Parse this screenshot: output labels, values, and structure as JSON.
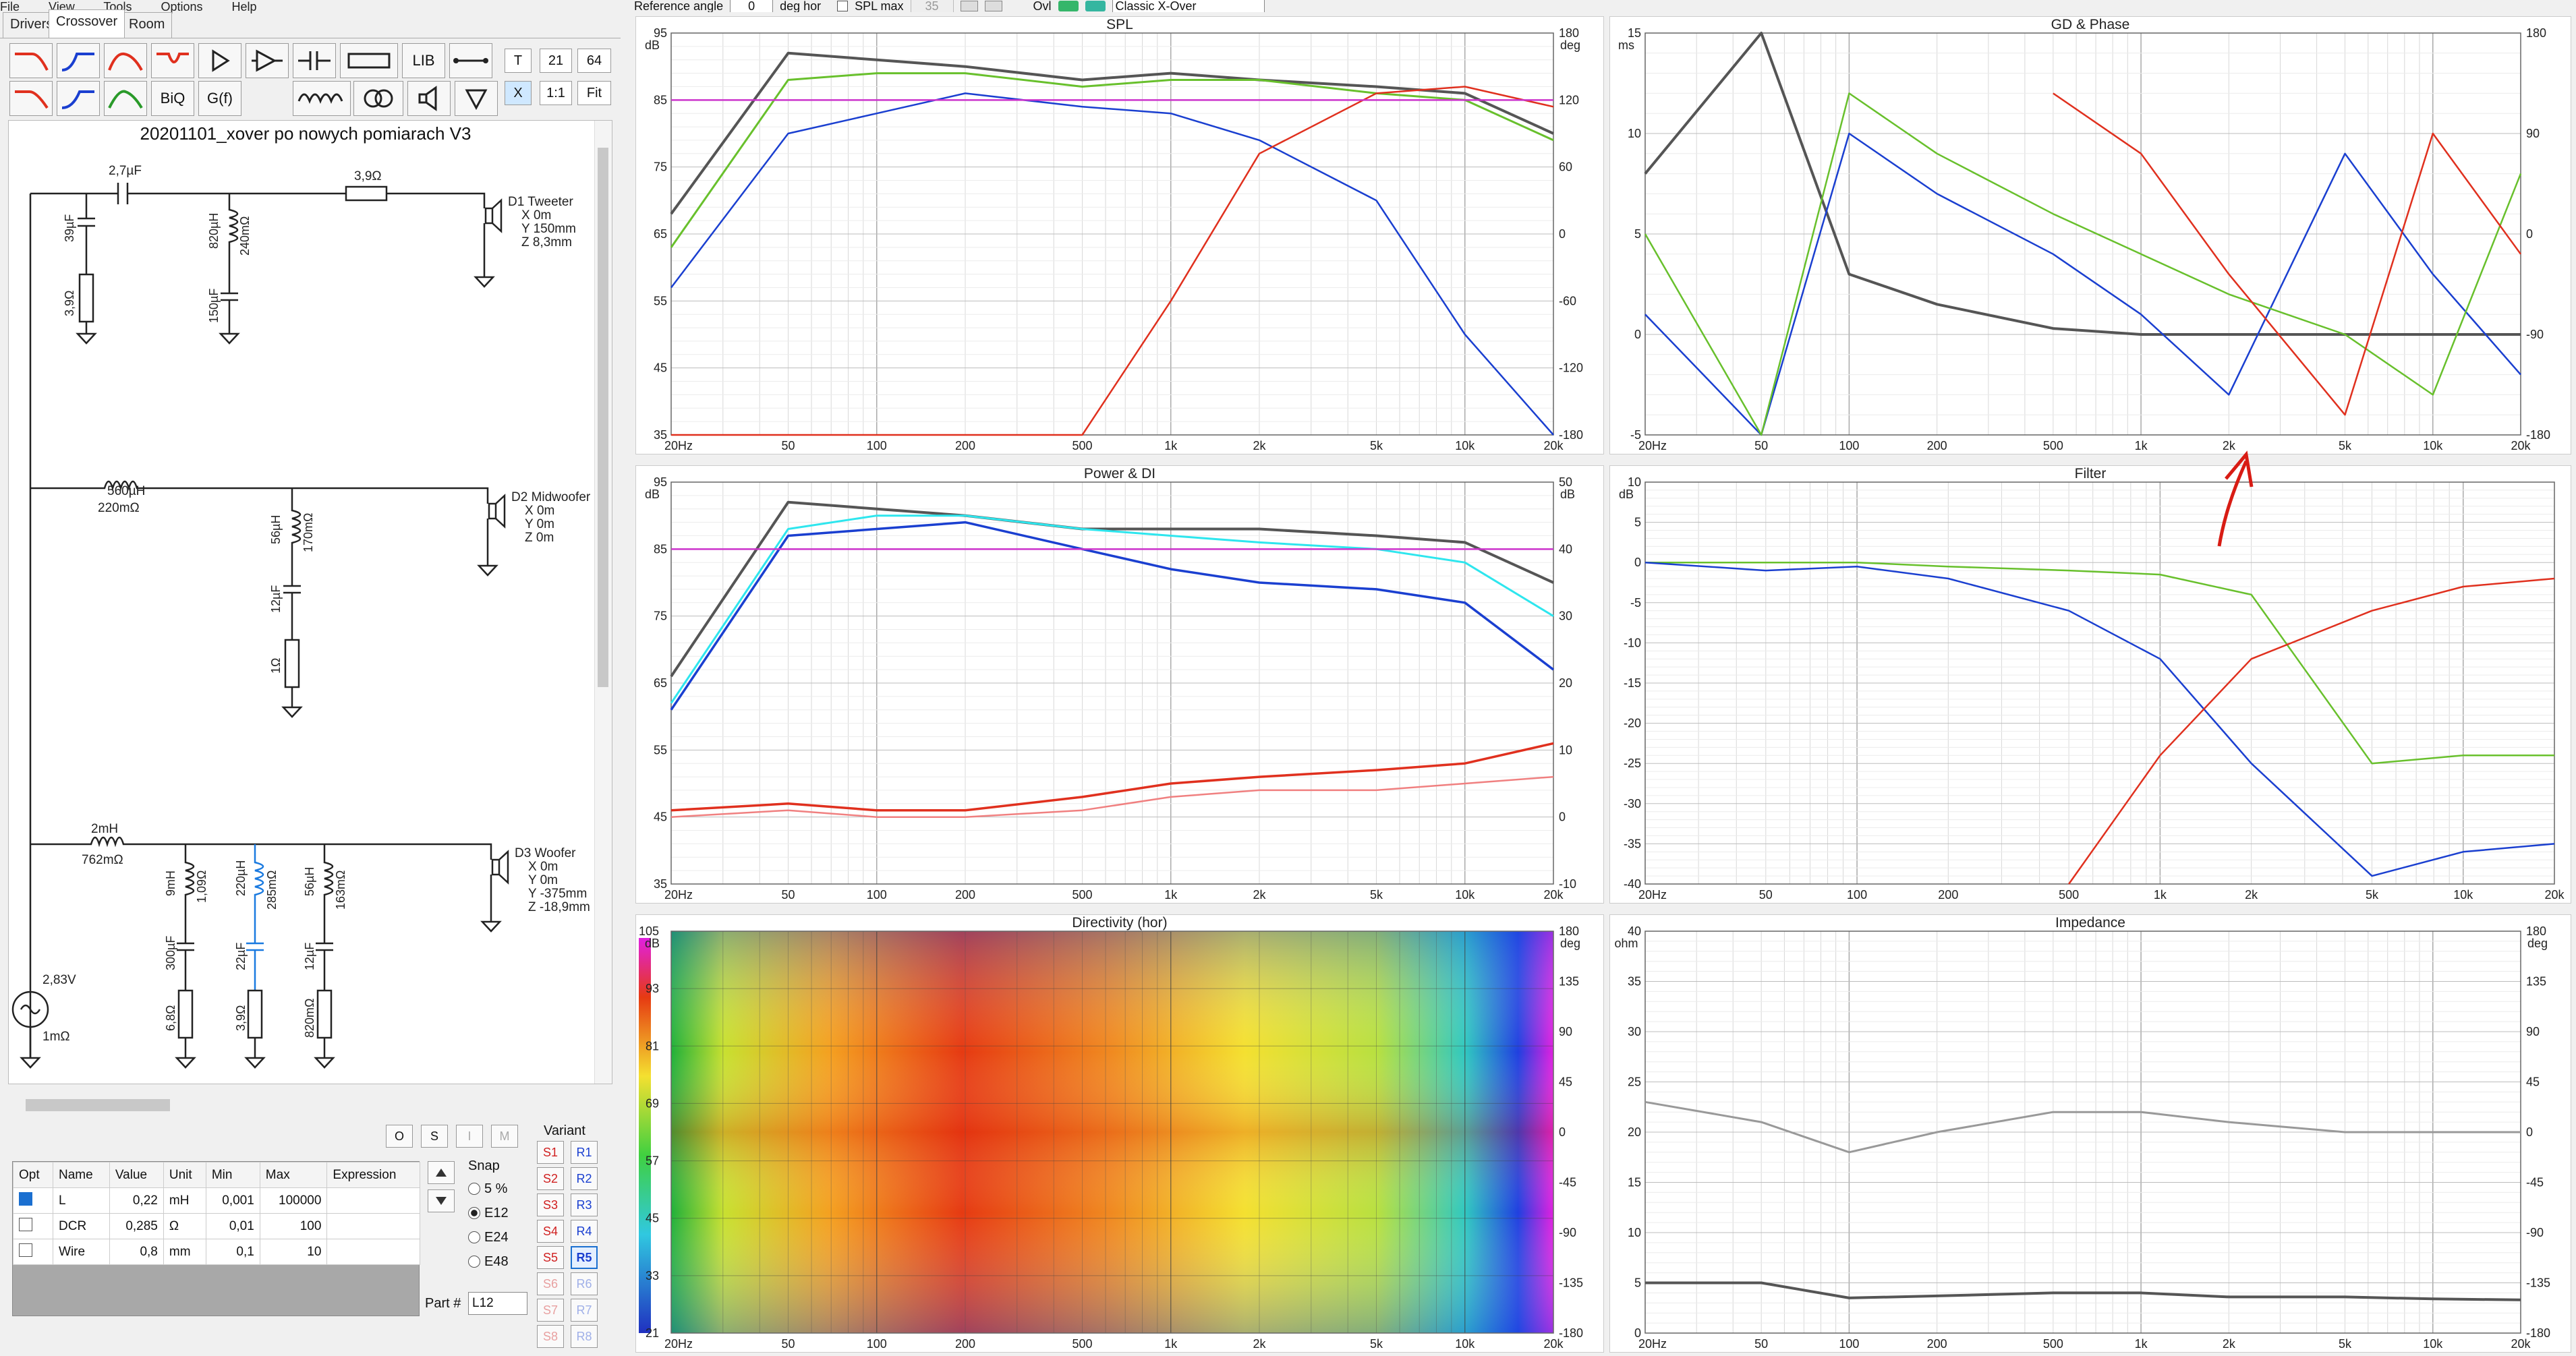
{
  "menu": {
    "items": [
      "File",
      "View",
      "Tools",
      "Options",
      "Help"
    ]
  },
  "tabs": [
    {
      "label": "Drivers"
    },
    {
      "label": "Crossover"
    },
    {
      "label": "Room"
    }
  ],
  "toolbar": {
    "t_label": "T",
    "x_label": "X",
    "fit_label": "Fit",
    "ratio_label": "1:1",
    "val1": "21",
    "val2": "64",
    "lib_label": "LIB",
    "biq_label": "BiQ",
    "gf_label": "G(f)"
  },
  "top_controls": {
    "reference_angle_label": "Reference angle",
    "reference_angle_value": "0",
    "deg_hor_label": "deg hor",
    "spl_max_label": "SPL max",
    "spl_max_value": "35",
    "ovl_label": "Ovl",
    "preset": "Classic X-Over"
  },
  "schematic": {
    "title": "20201101_xover po nowych pomiarach V3",
    "components": {
      "c1": "2,7µF",
      "r_series": "3,9Ω",
      "c_shunt1": "39µF",
      "r_shunt1": "3,9Ω",
      "l_shunt": "820µH",
      "l_shunt_dcr": "240mΩ",
      "c_shunt2": "150µF",
      "d1": [
        "D1 Tweeter",
        "X 0m",
        "Y 150mm",
        "Z 8,3mm"
      ],
      "l_mid": "560µH",
      "l_mid_dcr": "220mΩ",
      "l_mid2": "56µH",
      "l_mid2_dcr": "170mΩ",
      "c_mid": "12µF",
      "r_mid": "1Ω",
      "d2": [
        "D2 Midwoofer",
        "X 0m",
        "Y 0m",
        "Z 0m"
      ],
      "l_woof": "2mH",
      "l_woof_dcr": "762mΩ",
      "l_w1": "9mH",
      "l_w1_dcr": "1,09Ω",
      "l_w2": "220µH",
      "l_w2_dcr": "285mΩ",
      "l_w3": "56µH",
      "l_w3_dcr": "163mΩ",
      "c_w1": "300µF",
      "c_w2": "22µF",
      "c_w3": "12µF",
      "r_w1": "6,8Ω",
      "r_w2": "3,9Ω",
      "r_w3": "820mΩ",
      "d3": [
        "D3 Woofer",
        "X 0m",
        "Y 0m",
        "Y -375mm",
        "Z -18,9mm"
      ],
      "source_v": "2,83V",
      "source_r": "1mΩ"
    }
  },
  "bottom_buttons": {
    "o": "O",
    "s": "S",
    "i": "I",
    "m": "M"
  },
  "param_table": {
    "headers": [
      "Opt",
      "Name",
      "Value",
      "Unit",
      "Min",
      "Max",
      "Expression"
    ],
    "rows": [
      {
        "name": "L",
        "value": "0,22",
        "unit": "mH",
        "min": "0,001",
        "max": "100000",
        "expr": ""
      },
      {
        "name": "DCR",
        "value": "0,285",
        "unit": "Ω",
        "min": "0,01",
        "max": "100",
        "expr": ""
      },
      {
        "name": "Wire",
        "value": "0,8",
        "unit": "mm",
        "min": "0,1",
        "max": "10",
        "expr": ""
      }
    ]
  },
  "snap": {
    "label": "Snap",
    "options": [
      "5 %",
      "E12",
      "E24",
      "E48"
    ],
    "selected": "E12"
  },
  "part": {
    "label": "Part #",
    "value": "L12"
  },
  "variant": {
    "label": "Variant",
    "s": [
      "S1",
      "S2",
      "S3",
      "S4",
      "S5",
      "S6",
      "S7",
      "S8"
    ],
    "r": [
      "R1",
      "R2",
      "R3",
      "R4",
      "R5",
      "R6",
      "R7",
      "R8"
    ],
    "selected": "R5"
  },
  "charts": {
    "spl": {
      "title": "SPL",
      "yl_unit": "dB",
      "yr_unit": "deg",
      "yl": [
        "95",
        "85",
        "75",
        "65",
        "55",
        "45",
        "35"
      ],
      "yr": [
        "180",
        "120",
        "60",
        "0",
        "-60",
        "-120",
        "-180"
      ]
    },
    "gd": {
      "title": "GD & Phase",
      "yl_unit": "ms",
      "yl": [
        "15",
        "10",
        "5",
        "0",
        "-5"
      ],
      "yr": [
        "180",
        "90",
        "0",
        "-90",
        "-180"
      ]
    },
    "power": {
      "title": "Power & DI",
      "yl_unit": "dB",
      "yr_unit": "dB",
      "yl": [
        "95",
        "85",
        "75",
        "65",
        "55",
        "45",
        "35"
      ],
      "yr": [
        "50",
        "40",
        "30",
        "20",
        "10",
        "0",
        "-10"
      ]
    },
    "filter": {
      "title": "Filter",
      "yl_unit": "dB",
      "yl": [
        "10",
        "5",
        "0",
        "-5",
        "-10",
        "-15",
        "-20",
        "-25",
        "-30",
        "-35",
        "-40"
      ]
    },
    "directivity": {
      "title": "Directivity (hor)",
      "yl_unit": "dB",
      "yr_unit": "deg",
      "yl": [
        "105",
        "93",
        "81",
        "69",
        "57",
        "45",
        "33",
        "21"
      ],
      "yr": [
        "180",
        "135",
        "90",
        "45",
        "0",
        "-45",
        "-90",
        "-135",
        "-180"
      ]
    },
    "impedance": {
      "title": "Impedance",
      "yl_unit": "ohm",
      "yr_unit": "deg",
      "yl": [
        "40",
        "35",
        "30",
        "25",
        "20",
        "15",
        "10",
        "5",
        "0"
      ],
      "yr": [
        "180",
        "135",
        "90",
        "45",
        "0",
        "-45",
        "-90",
        "-135",
        "-180"
      ]
    },
    "freq_ticks": [
      "20Hz",
      "50",
      "100",
      "200",
      "500",
      "1k",
      "2k",
      "5k",
      "10k",
      "20k"
    ]
  },
  "colors": {
    "accent": "#1a3fd0",
    "red": "#e0301e",
    "green": "#68c02c",
    "gray": "#555555",
    "magenta": "#cc33cc",
    "cyan": "#2ee6ee"
  },
  "chart_data": [
    {
      "type": "line",
      "title": "SPL",
      "x": [
        20,
        50,
        100,
        200,
        500,
        1000,
        2000,
        5000,
        10000,
        20000
      ],
      "ylim": [
        35,
        95
      ],
      "series": [
        {
          "values": [
            68,
            92,
            91,
            90,
            88,
            89,
            88,
            87,
            86,
            80
          ]
        },
        {
          "values": [
            63,
            88,
            89,
            89,
            87,
            88,
            88,
            86,
            85,
            79
          ]
        },
        {
          "values": [
            57,
            80,
            83,
            86,
            84,
            83,
            79,
            70,
            50,
            35
          ]
        },
        {
          "values": [
            35,
            35,
            35,
            35,
            35,
            55,
            77,
            86,
            87,
            84
          ]
        }
      ]
    },
    {
      "type": "line",
      "title": "GD & Phase",
      "x": [
        20,
        50,
        100,
        200,
        500,
        1000,
        2000,
        5000,
        10000,
        20000
      ],
      "ylim": [
        -5,
        15
      ],
      "series": [
        {
          "values": [
            8,
            15,
            3,
            1.5,
            0.3,
            0,
            0,
            0,
            0,
            0
          ]
        },
        {
          "values": [
            1,
            -5,
            10,
            7,
            4,
            1,
            -3,
            9,
            3,
            -2
          ]
        },
        {
          "values": [
            5,
            -5,
            12,
            9,
            6,
            4,
            2,
            0,
            -3,
            8
          ]
        },
        {
          "values": [
            null,
            null,
            null,
            null,
            12,
            9,
            3,
            -4,
            10,
            4
          ]
        }
      ]
    },
    {
      "type": "line",
      "title": "Power & DI",
      "x": [
        20,
        50,
        100,
        200,
        500,
        1000,
        2000,
        5000,
        10000,
        20000
      ],
      "ylim": [
        35,
        95
      ],
      "series": [
        {
          "values": [
            66,
            92,
            91,
            90,
            88,
            88,
            88,
            87,
            86,
            80
          ]
        },
        {
          "values": [
            62,
            88,
            90,
            90,
            88,
            87,
            86,
            85,
            83,
            75
          ]
        },
        {
          "values": [
            61,
            87,
            88,
            89,
            85,
            82,
            80,
            79,
            77,
            67
          ]
        },
        {
          "values": [
            46,
            47,
            46,
            46,
            48,
            50,
            51,
            52,
            53,
            56
          ]
        },
        {
          "values": [
            45,
            46,
            45,
            45,
            46,
            48,
            49,
            49,
            50,
            51
          ]
        }
      ]
    },
    {
      "type": "line",
      "title": "Filter",
      "x": [
        20,
        50,
        100,
        200,
        500,
        1000,
        2000,
        5000,
        10000,
        20000
      ],
      "ylim": [
        -40,
        10
      ],
      "series": [
        {
          "values": [
            0,
            0,
            0,
            -0.5,
            -1,
            -1.5,
            -4,
            -25,
            -24,
            -24
          ]
        },
        {
          "values": [
            0,
            -1,
            -0.5,
            -2,
            -6,
            -12,
            -25,
            -39,
            -36,
            -35
          ]
        },
        {
          "values": [
            null,
            null,
            null,
            null,
            -40,
            -24,
            -12,
            -6,
            -3,
            -2
          ]
        }
      ]
    },
    {
      "type": "heatmap",
      "title": "Directivity (hor)",
      "x": [
        20,
        50,
        100,
        200,
        500,
        1000,
        2000,
        5000,
        10000,
        20000
      ],
      "ylim": [
        -180,
        180
      ]
    },
    {
      "type": "line",
      "title": "Impedance",
      "x": [
        20,
        50,
        100,
        200,
        500,
        1000,
        2000,
        5000,
        10000,
        20000
      ],
      "ylim": [
        0,
        40
      ],
      "series": [
        {
          "values": [
            5,
            5,
            3.5,
            3.7,
            4,
            4,
            3.6,
            3.6,
            3.4,
            3.3
          ]
        },
        {
          "values": [
            23,
            21,
            18,
            20,
            22,
            22,
            21,
            20,
            20,
            20
          ]
        }
      ]
    }
  ]
}
